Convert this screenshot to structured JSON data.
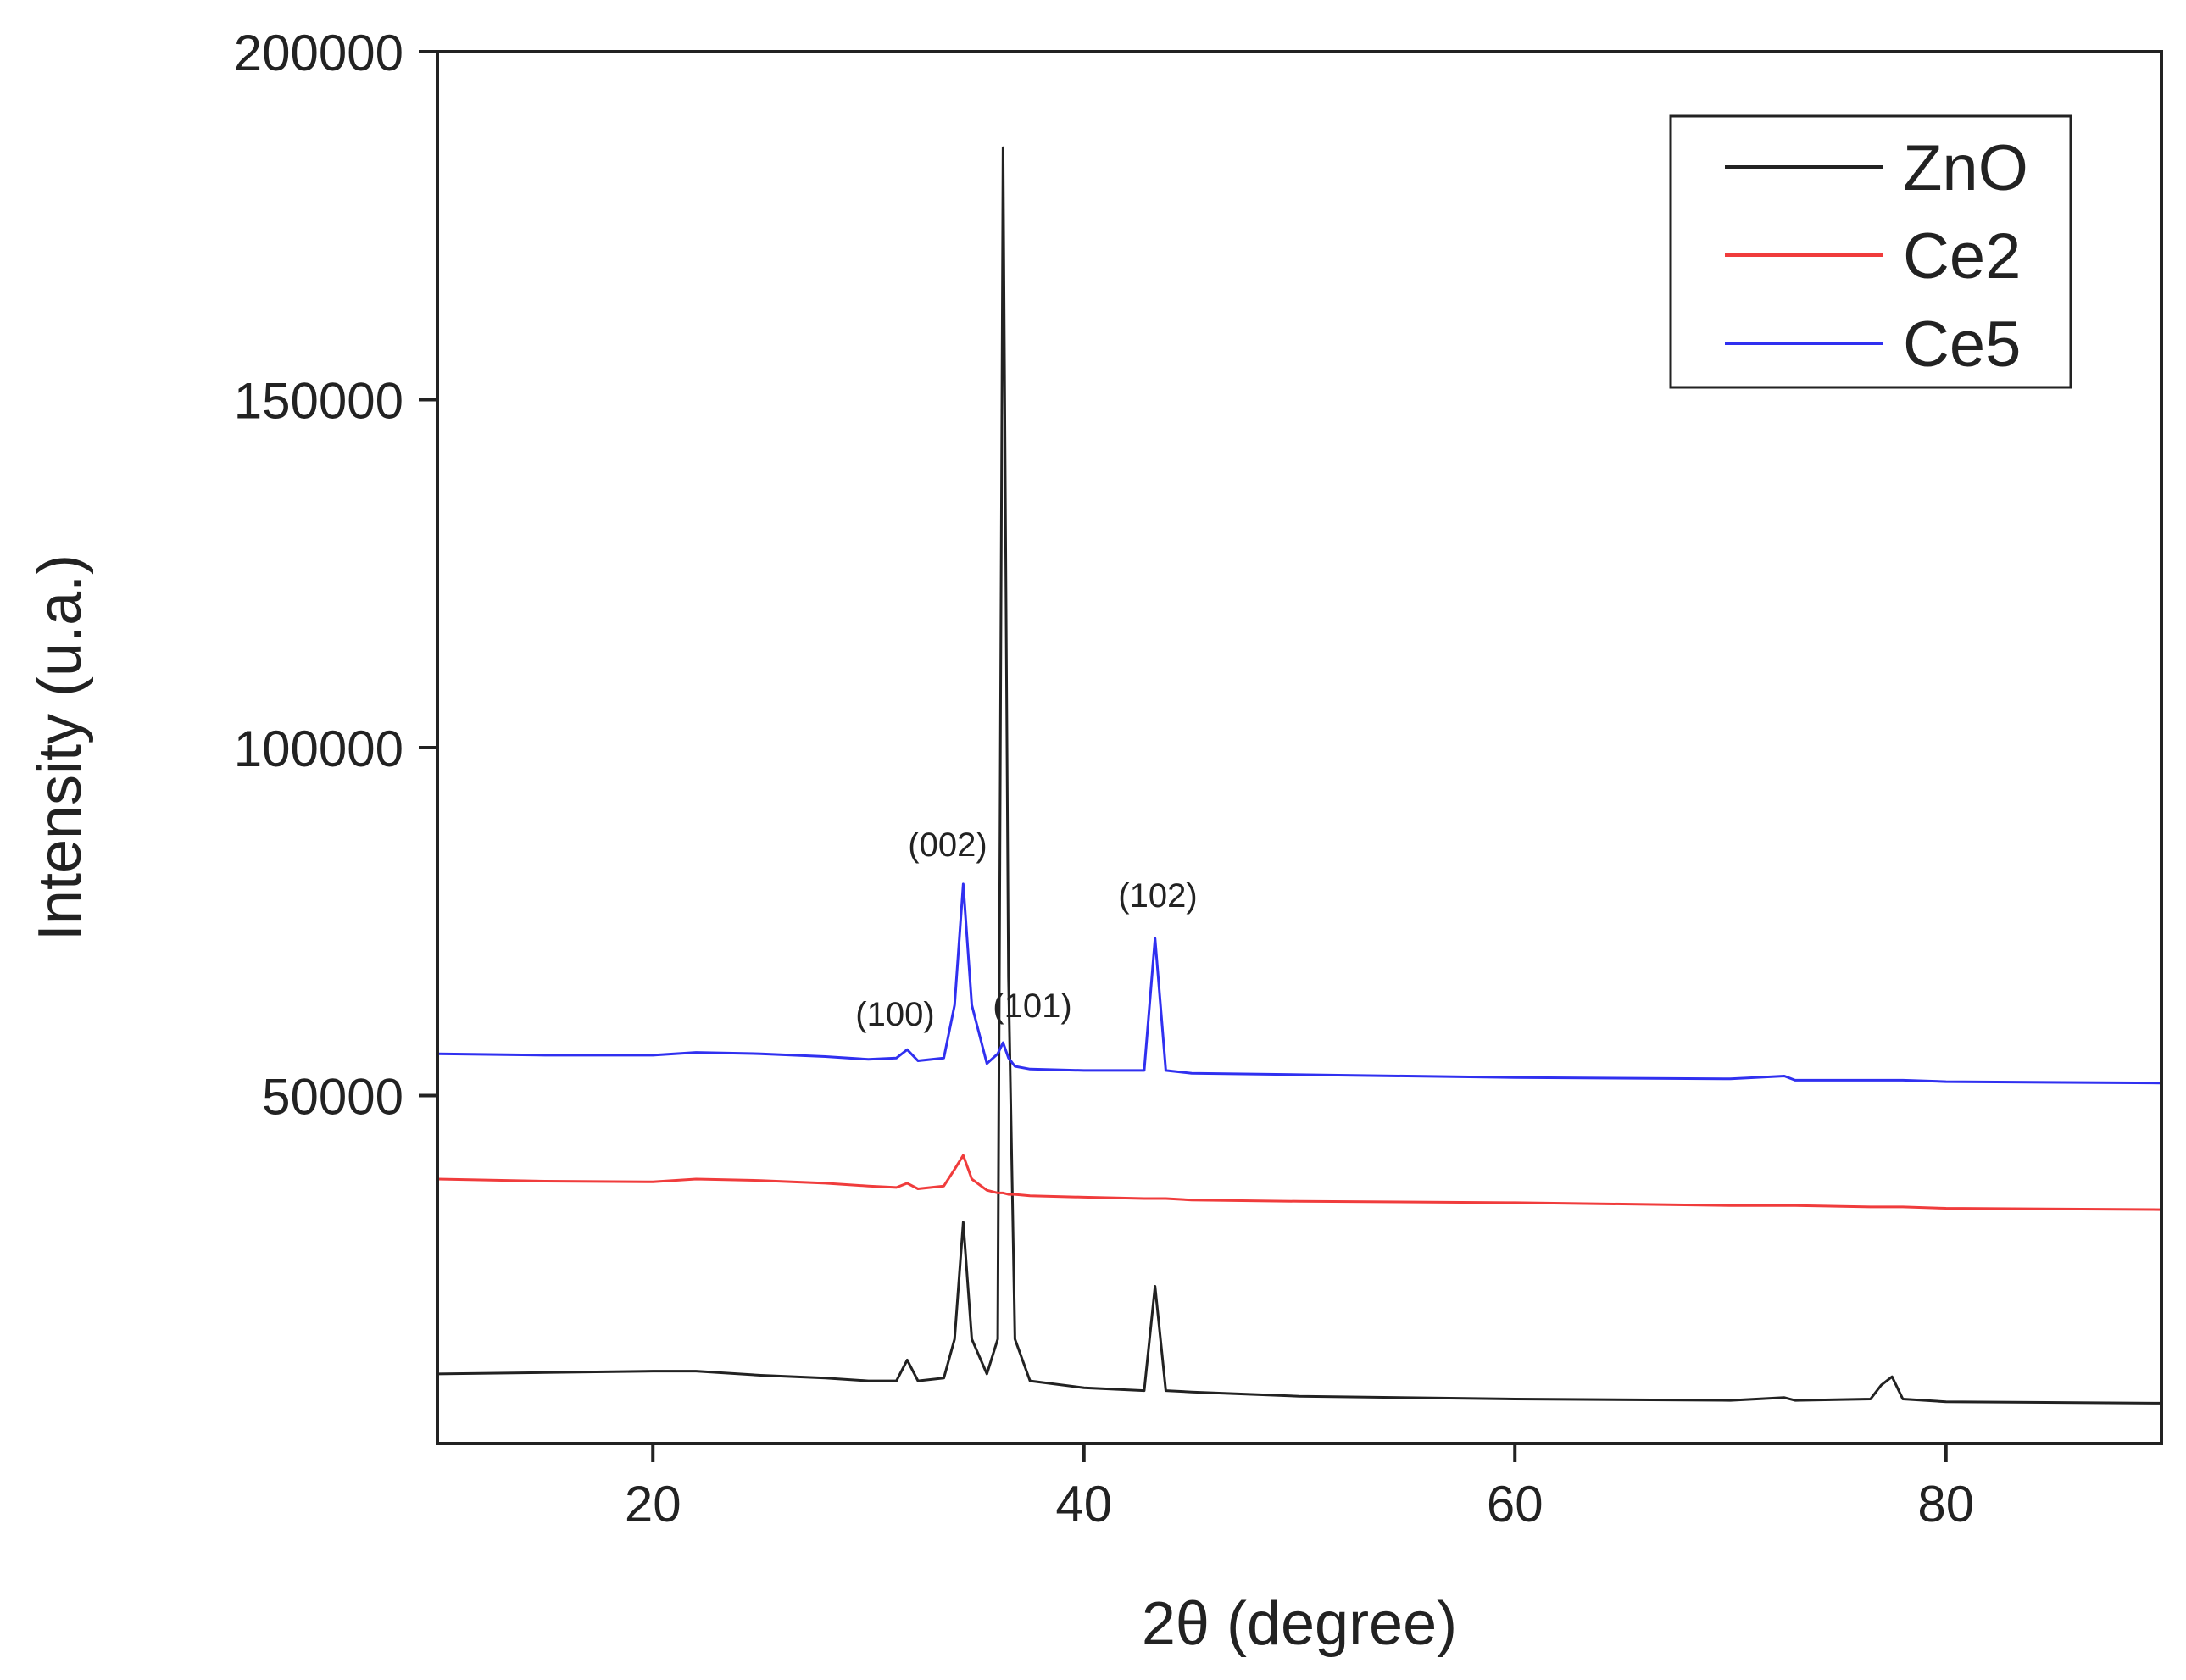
{
  "chart_data": {
    "type": "line",
    "xlabel": "2θ (degree)",
    "ylabel": "Intensity (u.a.)",
    "x": [
      10,
      15,
      20,
      22,
      25,
      28,
      30,
      31.3,
      31.8,
      32.3,
      33.5,
      34.0,
      34.4,
      34.8,
      35.5,
      36.0,
      36.25,
      36.5,
      36.8,
      37.5,
      40,
      42.8,
      43.3,
      43.8,
      45,
      50,
      60,
      70,
      72.5,
      73,
      76.5,
      77.0,
      77.5,
      78,
      80,
      90
    ],
    "series": [
      {
        "name": "ZnO",
        "color": "#222222",
        "values": [
          10000,
          10200,
          10400,
          10400,
          9800,
          9400,
          9000,
          9000,
          12000,
          9000,
          9400,
          15000,
          31800,
          15000,
          10000,
          15000,
          186200,
          67000,
          15000,
          9000,
          8000,
          7600,
          22600,
          7600,
          7400,
          6800,
          6400,
          6200,
          6600,
          6200,
          6400,
          8400,
          9600,
          6400,
          6000,
          5800
        ]
      },
      {
        "name": "Ce2",
        "color": "#f03c3c",
        "values": [
          38000,
          37700,
          37600,
          38000,
          37800,
          37400,
          37000,
          36800,
          37400,
          36600,
          37000,
          39400,
          41400,
          38000,
          36400,
          36000,
          36000,
          35800,
          35800,
          35600,
          35400,
          35200,
          35200,
          35200,
          35000,
          34800,
          34600,
          34200,
          34200,
          34200,
          34000,
          34000,
          34000,
          34000,
          33800,
          33600
        ]
      },
      {
        "name": "Ce5",
        "color": "#3030f0",
        "values": [
          56000,
          55800,
          55800,
          56200,
          56000,
          55600,
          55200,
          55400,
          56600,
          55000,
          55400,
          63000,
          80400,
          63000,
          54600,
          56000,
          57600,
          55400,
          54200,
          53800,
          53600,
          53600,
          72600,
          53600,
          53200,
          53000,
          52600,
          52400,
          52800,
          52200,
          52200,
          52200,
          52200,
          52200,
          52000,
          51800
        ]
      }
    ],
    "annotations": [
      "(100)",
      "(002)",
      "(101)",
      "(102)"
    ],
    "xlim": [
      10,
      90
    ],
    "xticks": [
      20,
      40,
      60,
      80
    ],
    "ylim": [
      0,
      200000
    ],
    "yticks": [
      50000,
      100000,
      150000,
      200000
    ],
    "legend": "upper right"
  }
}
